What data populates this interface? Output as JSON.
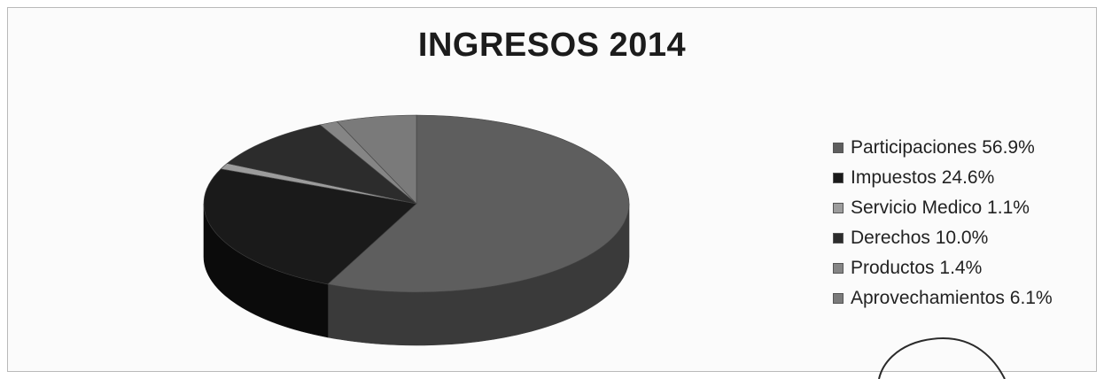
{
  "chart_data": {
    "type": "pie",
    "title": "INGRESOS 2014",
    "legend_position": "right",
    "slices": [
      {
        "label": "Participaciones 56.9%",
        "name": "Participaciones",
        "value": 56.9,
        "color": "#5e5e5e",
        "side": "#3a3a3a"
      },
      {
        "label": "Impuestos 24.6%",
        "name": "Impuestos",
        "value": 24.6,
        "color": "#1a1a1a",
        "side": "#0b0b0b"
      },
      {
        "label": "Servicio Medico 1.1%",
        "name": "Servicio Medico",
        "value": 1.1,
        "color": "#9c9c9c",
        "side": "#6d6d6d"
      },
      {
        "label": "Derechos 10.0%",
        "name": "Derechos",
        "value": 10.0,
        "color": "#2c2c2c",
        "side": "#171717"
      },
      {
        "label": "Productos 1.4%",
        "name": "Productos",
        "value": 1.4,
        "color": "#858585",
        "side": "#5b5b5b"
      },
      {
        "label": "Aprovechamientos 6.1%",
        "name": "Aprovechamientos",
        "value": 6.1,
        "color": "#7a7a7a",
        "side": "#525252"
      }
    ]
  }
}
